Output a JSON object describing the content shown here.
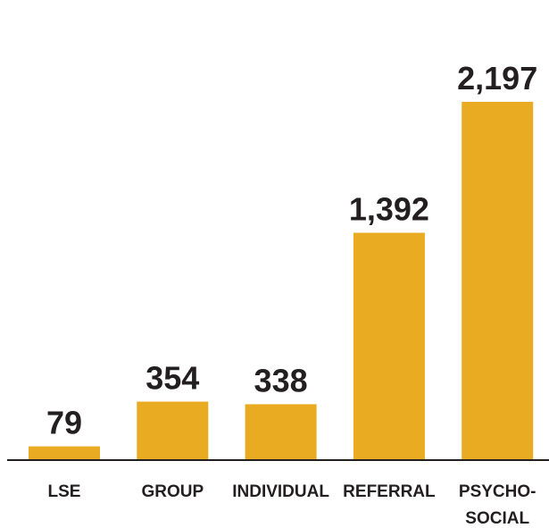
{
  "chart_data": {
    "type": "bar",
    "categories": [
      "LSE",
      "GROUP",
      "INDIVIDUAL",
      "REFERRAL",
      "PSYCHO-SOCIAL"
    ],
    "values": [
      79,
      354,
      338,
      1392,
      2197
    ],
    "value_labels": [
      "79",
      "354",
      "338",
      "1,392",
      "2,197"
    ],
    "color": "#e9ab21"
  }
}
